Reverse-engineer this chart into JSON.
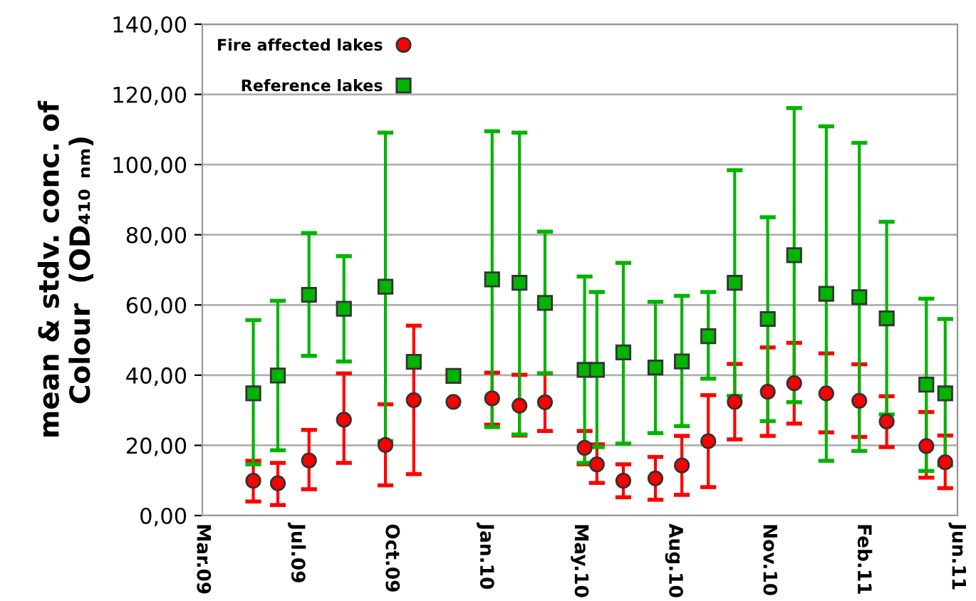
{
  "chart_data": {
    "type": "scatter",
    "ylabel": "mean & stdv. conc. of\nColour  (OD₄₁₀ ₙₘ)",
    "x": [
      "2009-05-21",
      "2009-06-16",
      "2009-07-19",
      "2009-08-25",
      "2009-10-08",
      "2009-11-07",
      "2009-12-19",
      "2010-01-29",
      "2010-02-27",
      "2010-03-26",
      "2010-05-07",
      "2010-05-20",
      "2010-06-17",
      "2010-07-21",
      "2010-08-18",
      "2010-09-15",
      "2010-10-13",
      "2010-11-17",
      "2010-12-15",
      "2011-01-18",
      "2011-02-22",
      "2011-03-23",
      "2011-05-04",
      "2011-05-24"
    ],
    "series": [
      {
        "name": "Fire affected lakes",
        "color": "#ff0000",
        "marker": "circle",
        "values": [
          9.9,
          9.2,
          15.7,
          27.3,
          20.1,
          32.9,
          32.4,
          33.4,
          31.3,
          32.3,
          19.3,
          14.6,
          9.9,
          10.6,
          14.3,
          21.2,
          32.4,
          35.3,
          37.7,
          34.8,
          32.7,
          26.8,
          19.8,
          15.2
        ],
        "errors": [
          [
            4.0,
            15.6
          ],
          [
            3.0,
            15.0
          ],
          [
            7.5,
            24.4
          ],
          [
            15.0,
            40.5
          ],
          [
            8.6,
            31.7
          ],
          [
            11.8,
            54.1
          ],
          null,
          [
            25.9,
            40.7
          ],
          [
            22.8,
            40.1
          ],
          [
            24.1,
            40.5
          ],
          [
            14.6,
            24.1
          ],
          [
            9.3,
            20.3
          ],
          [
            5.2,
            14.6
          ],
          [
            4.5,
            16.7
          ],
          [
            5.9,
            22.7
          ],
          [
            8.1,
            34.3
          ],
          [
            21.7,
            43.2
          ],
          [
            22.7,
            47.9
          ],
          [
            26.2,
            49.2
          ],
          [
            23.7,
            46.2
          ],
          [
            22.4,
            43.1
          ],
          [
            19.5,
            34.0
          ],
          [
            10.8,
            29.5
          ],
          [
            7.8,
            22.8
          ]
        ]
      },
      {
        "name": "Reference lakes",
        "color": "#00b400",
        "marker": "square",
        "values": [
          34.8,
          39.9,
          62.9,
          58.9,
          65.2,
          43.8,
          39.8,
          67.3,
          66.3,
          60.6,
          41.5,
          41.5,
          46.5,
          42.2,
          43.9,
          51.1,
          66.3,
          56.0,
          74.2,
          63.2,
          62.2,
          56.2,
          37.3,
          34.8
        ],
        "errors": [
          [
            14.6,
            55.7
          ],
          [
            18.6,
            61.2
          ],
          [
            45.5,
            80.5
          ],
          [
            43.9,
            73.9
          ],
          [
            21.2,
            109.1
          ],
          null,
          null,
          [
            25.2,
            109.5
          ],
          [
            23.1,
            109.1
          ],
          [
            40.5,
            80.9
          ],
          [
            15.0,
            68.1
          ],
          [
            19.5,
            63.7
          ],
          [
            20.5,
            72.0
          ],
          [
            23.5,
            60.9
          ],
          [
            25.5,
            62.6
          ],
          [
            39.0,
            63.7
          ],
          [
            34.1,
            98.4
          ],
          [
            26.9,
            85.0
          ],
          [
            32.3,
            116.1
          ],
          [
            15.6,
            110.9
          ],
          [
            18.4,
            106.2
          ],
          [
            28.8,
            83.7
          ],
          [
            12.7,
            61.8
          ],
          [
            14.3,
            56.0
          ]
        ]
      }
    ],
    "xlim": [
      "2009-03-28",
      "2011-06-06"
    ],
    "xticks": [
      {
        "value": "2009-03-28",
        "label": "Mar.09"
      },
      {
        "value": "2009-07-06",
        "label": "Jul.09"
      },
      {
        "value": "2009-10-14",
        "label": "Oct.09"
      },
      {
        "value": "2010-01-22",
        "label": "Jan.10"
      },
      {
        "value": "2010-05-02",
        "label": "May.10"
      },
      {
        "value": "2010-08-10",
        "label": "Aug.10"
      },
      {
        "value": "2010-11-18",
        "label": "Nov.10"
      },
      {
        "value": "2011-02-26",
        "label": "Feb.11"
      },
      {
        "value": "2011-06-06",
        "label": "Jun.11"
      }
    ],
    "ylim": [
      0,
      140
    ],
    "yticks": [
      {
        "value": 0,
        "label": "0,00"
      },
      {
        "value": 20,
        "label": "20,00"
      },
      {
        "value": 40,
        "label": "40,00"
      },
      {
        "value": 60,
        "label": "60,00"
      },
      {
        "value": 80,
        "label": "80,00"
      },
      {
        "value": 100,
        "label": "100,00"
      },
      {
        "value": 120,
        "label": "120,00"
      },
      {
        "value": 140,
        "label": "140,00"
      }
    ],
    "grid": "y",
    "legend": "top left"
  }
}
